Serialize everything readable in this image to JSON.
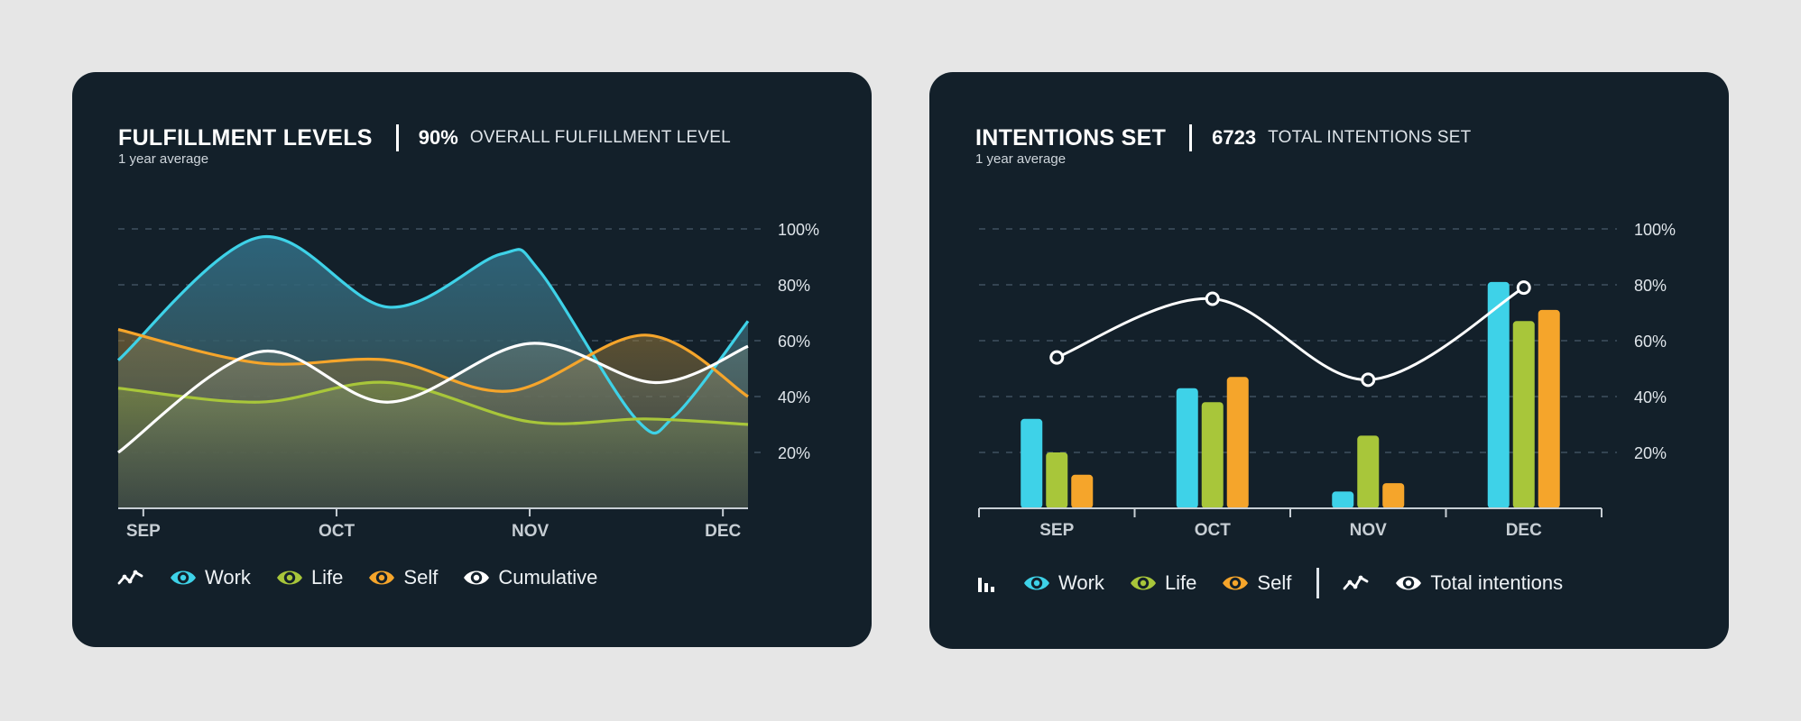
{
  "colors": {
    "work": "#3ed2e8",
    "life": "#a8c63a",
    "self": "#f5a52b",
    "cumulative": "#ffffff",
    "card_bg": "#13202a",
    "grid": "#3f5060",
    "axis": "#c7ced4",
    "tick_text": "#c7ced4"
  },
  "fulfillment": {
    "title": "FULFILLMENT LEVELS",
    "stat_value": "90%",
    "stat_label": "OVERALL FULFILLMENT LEVEL",
    "subtitle": "1 year average",
    "legend": [
      {
        "label": "Work",
        "color": "#3ed2e8",
        "icon": "eye-icon"
      },
      {
        "label": "Life",
        "color": "#a8c63a",
        "icon": "eye-icon"
      },
      {
        "label": "Self",
        "color": "#f5a52b",
        "icon": "eye-icon"
      },
      {
        "label": "Cumulative",
        "color": "#ffffff",
        "icon": "eye-icon"
      }
    ],
    "legend_type_icon": "line-chart-icon"
  },
  "intentions": {
    "title": "INTENTIONS SET",
    "stat_value": "6723",
    "stat_label": "TOTAL INTENTIONS SET",
    "subtitle": "1 year average",
    "legend": [
      {
        "label": "Work",
        "color": "#3ed2e8",
        "icon": "eye-icon"
      },
      {
        "label": "Life",
        "color": "#a8c63a",
        "icon": "eye-icon"
      },
      {
        "label": "Self",
        "color": "#f5a52b",
        "icon": "eye-icon"
      }
    ],
    "legend_line": {
      "label": "Total intentions",
      "color": "#ffffff",
      "icon": "eye-icon"
    },
    "legend_bar_icon": "bar-chart-icon",
    "legend_line_icon": "line-chart-icon"
  },
  "chart_data": [
    {
      "type": "area",
      "title": "FULFILLMENT LEVELS",
      "x": [
        0,
        0.5,
        1,
        1.5,
        2,
        2.5,
        3,
        3.3
      ],
      "x_ticks": [
        0,
        1,
        2,
        3
      ],
      "categories": [
        "SEP",
        "OCT",
        "NOV",
        "DEC"
      ],
      "xlim": [
        -0.13,
        3.13
      ],
      "ylim": [
        0,
        100
      ],
      "y_ticks": [
        20,
        40,
        60,
        80,
        100
      ],
      "y_tick_labels": [
        "20%",
        "40%",
        "60%",
        "80%",
        "100%"
      ],
      "grid": true,
      "series": [
        {
          "name": "Work",
          "points": [
            [
              -0.13,
              53
            ],
            [
              0.6,
              97
            ],
            [
              1.27,
              72
            ],
            [
              1.85,
              91
            ],
            [
              2.05,
              85
            ],
            [
              2.55,
              32
            ],
            [
              2.75,
              33
            ],
            [
              3.13,
              67
            ]
          ]
        },
        {
          "name": "Self",
          "points": [
            [
              -0.13,
              64
            ],
            [
              0.6,
              52
            ],
            [
              1.27,
              53
            ],
            [
              1.9,
              42
            ],
            [
              2.6,
              62
            ],
            [
              3.13,
              40
            ]
          ]
        },
        {
          "name": "Life",
          "points": [
            [
              -0.13,
              43
            ],
            [
              0.6,
              38
            ],
            [
              1.27,
              45
            ],
            [
              2.0,
              31
            ],
            [
              2.6,
              32
            ],
            [
              3.13,
              30
            ]
          ]
        },
        {
          "name": "Cumulative",
          "points": [
            [
              -0.13,
              20
            ],
            [
              0.6,
              56
            ],
            [
              1.27,
              38
            ],
            [
              2.0,
              59
            ],
            [
              2.65,
              45
            ],
            [
              3.13,
              58
            ]
          ]
        }
      ]
    },
    {
      "type": "bar",
      "title": "INTENTIONS SET",
      "categories": [
        "SEP",
        "OCT",
        "NOV",
        "DEC"
      ],
      "ylim": [
        0,
        100
      ],
      "y_ticks": [
        20,
        40,
        60,
        80,
        100
      ],
      "y_tick_labels": [
        "20%",
        "40%",
        "60%",
        "80%",
        "100%"
      ],
      "grid": true,
      "series": [
        {
          "name": "Work",
          "values": [
            32,
            43,
            6,
            81
          ]
        },
        {
          "name": "Life",
          "values": [
            20,
            38,
            26,
            67
          ]
        },
        {
          "name": "Self",
          "values": [
            12,
            47,
            9,
            71
          ]
        }
      ],
      "line": {
        "name": "Total intentions",
        "values": [
          54,
          75,
          46,
          79
        ]
      }
    }
  ]
}
